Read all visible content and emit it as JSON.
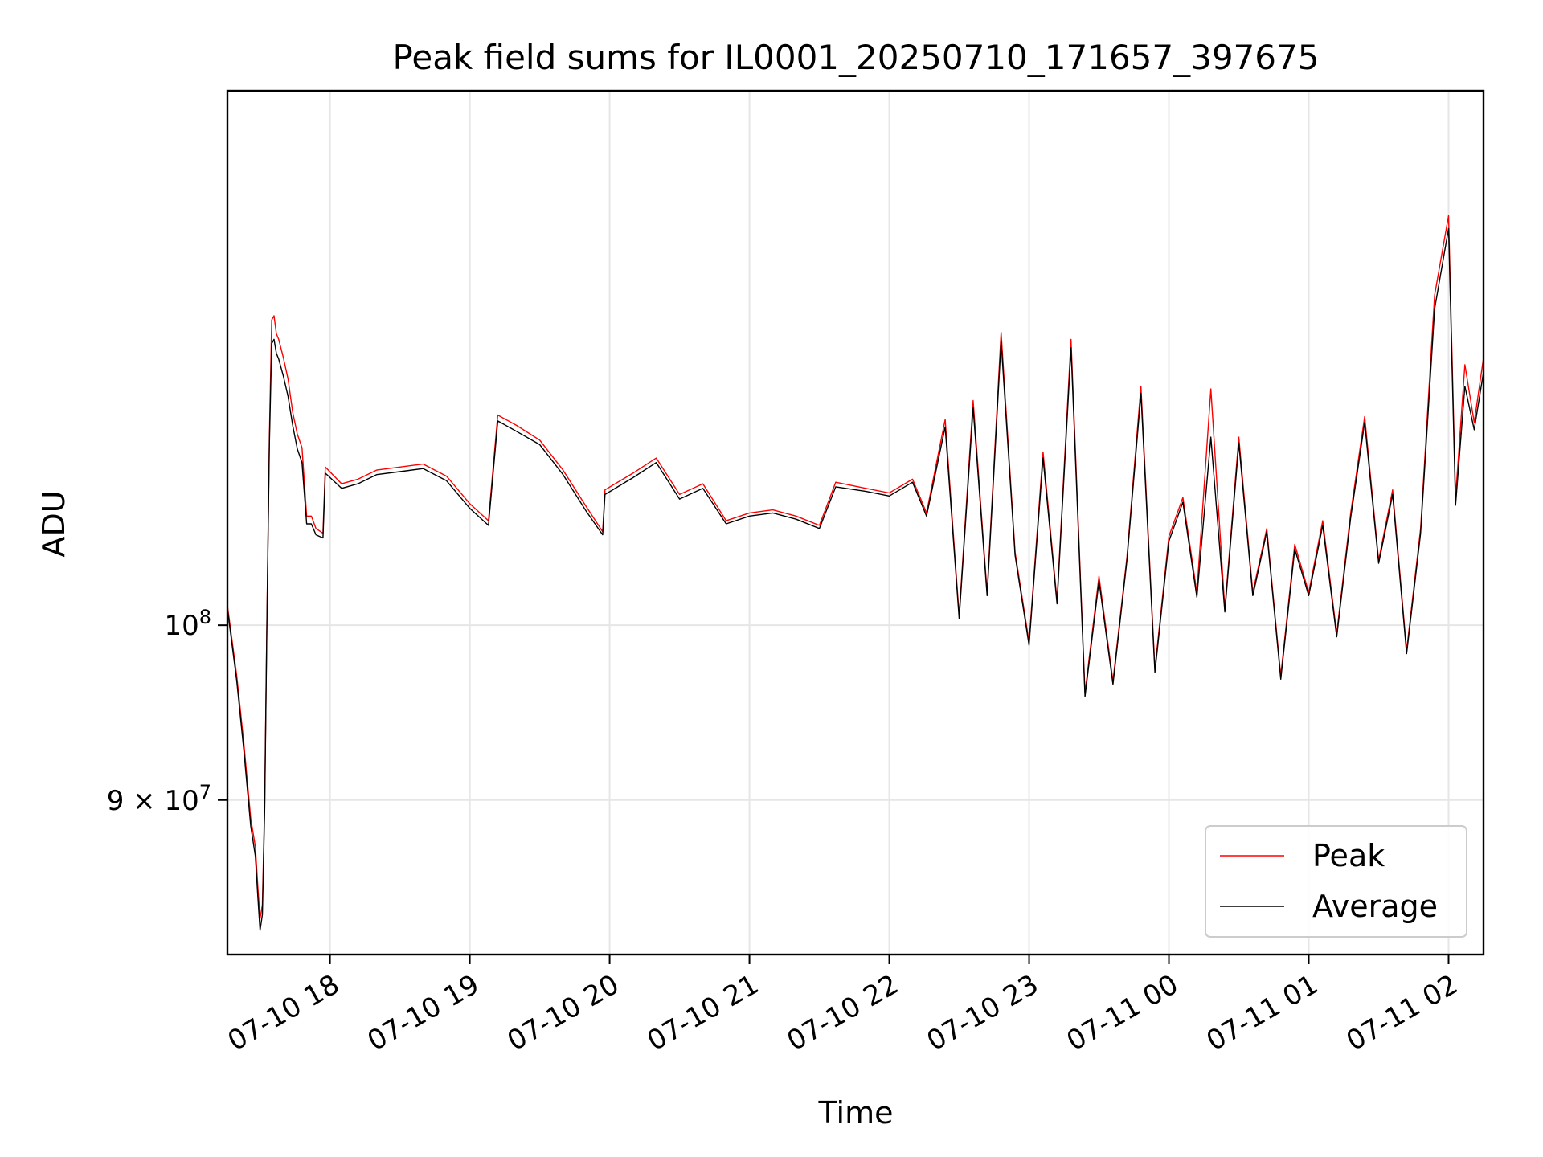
{
  "chart_data": {
    "type": "line",
    "title": "Peak field sums for IL0001_20250710_171657_397675",
    "xlabel": "Time",
    "ylabel": "ADU",
    "yscale": "log",
    "grid": true,
    "legend_position": "lower-right",
    "xlim": [
      "2025-07-10 17:16",
      "2025-07-11 02:15"
    ],
    "ylim": [
      82000000,
      138000000
    ],
    "x_ticks": [
      {
        "t": "2025-07-10 18:00",
        "label": "07-10 18"
      },
      {
        "t": "2025-07-10 19:00",
        "label": "07-10 19"
      },
      {
        "t": "2025-07-10 20:00",
        "label": "07-10 20"
      },
      {
        "t": "2025-07-10 21:00",
        "label": "07-10 21"
      },
      {
        "t": "2025-07-10 22:00",
        "label": "07-10 22"
      },
      {
        "t": "2025-07-10 23:00",
        "label": "07-10 23"
      },
      {
        "t": "2025-07-11 00:00",
        "label": "07-11 00"
      },
      {
        "t": "2025-07-11 01:00",
        "label": "07-11 01"
      },
      {
        "t": "2025-07-11 02:00",
        "label": "07-11 02"
      }
    ],
    "y_ticks": [
      {
        "value": 100000000,
        "base": "10",
        "exp": "8",
        "coef": ""
      },
      {
        "value": 90000000,
        "base": "10",
        "exp": "7",
        "coef": "9 × "
      }
    ],
    "series": [
      {
        "name": "Peak",
        "color": "#ff0000",
        "points": [
          [
            "2025-07-10 17:16",
            101200000
          ],
          [
            "2025-07-10 17:20",
            97000000
          ],
          [
            "2025-07-10 17:23",
            93200000
          ],
          [
            "2025-07-10 17:26",
            89000000
          ],
          [
            "2025-07-10 17:28",
            87500000
          ],
          [
            "2025-07-10 17:29",
            85500000
          ],
          [
            "2025-07-10 17:30",
            83800000
          ],
          [
            "2025-07-10 17:31",
            84500000
          ],
          [
            "2025-07-10 17:32",
            90000000
          ],
          [
            "2025-07-10 17:33",
            101000000
          ],
          [
            "2025-07-10 17:34",
            112000000
          ],
          [
            "2025-07-10 17:35",
            120200000
          ],
          [
            "2025-07-10 17:36",
            120500000
          ],
          [
            "2025-07-10 17:37",
            119200000
          ],
          [
            "2025-07-10 17:38",
            118800000
          ],
          [
            "2025-07-10 17:40",
            117500000
          ],
          [
            "2025-07-10 17:42",
            116000000
          ],
          [
            "2025-07-10 17:44",
            113700000
          ],
          [
            "2025-07-10 17:46",
            112200000
          ],
          [
            "2025-07-10 17:48",
            111300000
          ],
          [
            "2025-07-10 17:50",
            106800000
          ],
          [
            "2025-07-10 17:52",
            106800000
          ],
          [
            "2025-07-10 17:54",
            106000000
          ],
          [
            "2025-07-10 17:57",
            105700000
          ],
          [
            "2025-07-10 17:58",
            110000000
          ],
          [
            "2025-07-10 18:05",
            108900000
          ],
          [
            "2025-07-10 18:12",
            109200000
          ],
          [
            "2025-07-10 18:20",
            109800000
          ],
          [
            "2025-07-10 18:30",
            110000000
          ],
          [
            "2025-07-10 18:40",
            110200000
          ],
          [
            "2025-07-10 18:50",
            109400000
          ],
          [
            "2025-07-10 19:00",
            107600000
          ],
          [
            "2025-07-10 19:08",
            106500000
          ],
          [
            "2025-07-10 19:12",
            113500000
          ],
          [
            "2025-07-10 19:20",
            112800000
          ],
          [
            "2025-07-10 19:30",
            111800000
          ],
          [
            "2025-07-10 19:40",
            109800000
          ],
          [
            "2025-07-10 19:50",
            107400000
          ],
          [
            "2025-07-10 19:57",
            105800000
          ],
          [
            "2025-07-10 19:58",
            108500000
          ],
          [
            "2025-07-10 20:10",
            109600000
          ],
          [
            "2025-07-10 20:20",
            110600000
          ],
          [
            "2025-07-10 20:30",
            108200000
          ],
          [
            "2025-07-10 20:40",
            108900000
          ],
          [
            "2025-07-10 20:50",
            106500000
          ],
          [
            "2025-07-10 21:00",
            107000000
          ],
          [
            "2025-07-10 21:10",
            107200000
          ],
          [
            "2025-07-10 21:20",
            106800000
          ],
          [
            "2025-07-10 21:30",
            106200000
          ],
          [
            "2025-07-10 21:37",
            109000000
          ],
          [
            "2025-07-10 21:50",
            108600000
          ],
          [
            "2025-07-10 22:00",
            108300000
          ],
          [
            "2025-07-10 22:10",
            109200000
          ],
          [
            "2025-07-10 22:16",
            107000000
          ],
          [
            "2025-07-10 22:24",
            113200000
          ],
          [
            "2025-07-10 22:30",
            100600000
          ],
          [
            "2025-07-10 22:36",
            114500000
          ],
          [
            "2025-07-10 22:42",
            102000000
          ],
          [
            "2025-07-10 22:48",
            119300000
          ],
          [
            "2025-07-10 22:54",
            104500000
          ],
          [
            "2025-07-10 23:00",
            99000000
          ],
          [
            "2025-07-10 23:06",
            111000000
          ],
          [
            "2025-07-10 23:12",
            101500000
          ],
          [
            "2025-07-10 23:18",
            118800000
          ],
          [
            "2025-07-10 23:24",
            96000000
          ],
          [
            "2025-07-10 23:30",
            103000000
          ],
          [
            "2025-07-10 23:36",
            96700000
          ],
          [
            "2025-07-10 23:42",
            104200000
          ],
          [
            "2025-07-10 23:48",
            115500000
          ],
          [
            "2025-07-10 23:54",
            97400000
          ],
          [
            "2025-07-11 00:00",
            105500000
          ],
          [
            "2025-07-11 00:06",
            108000000
          ],
          [
            "2025-07-11 00:12",
            102000000
          ],
          [
            "2025-07-11 00:18",
            115300000
          ],
          [
            "2025-07-11 00:24",
            101000000
          ],
          [
            "2025-07-11 00:30",
            112000000
          ],
          [
            "2025-07-11 00:36",
            102000000
          ],
          [
            "2025-07-11 00:42",
            106000000
          ],
          [
            "2025-07-11 00:48",
            97000000
          ],
          [
            "2025-07-11 00:54",
            105000000
          ],
          [
            "2025-07-11 01:00",
            102000000
          ],
          [
            "2025-07-11 01:06",
            106500000
          ],
          [
            "2025-07-11 01:12",
            99500000
          ],
          [
            "2025-07-11 01:18",
            107000000
          ],
          [
            "2025-07-11 01:24",
            113400000
          ],
          [
            "2025-07-11 01:30",
            104000000
          ],
          [
            "2025-07-11 01:36",
            108500000
          ],
          [
            "2025-07-11 01:42",
            98500000
          ],
          [
            "2025-07-11 01:48",
            106000000
          ],
          [
            "2025-07-11 01:54",
            122000000
          ],
          [
            "2025-07-11 02:00",
            128000000
          ],
          [
            "2025-07-11 02:03",
            108000000
          ],
          [
            "2025-07-11 02:07",
            117000000
          ],
          [
            "2025-07-11 02:11",
            113000000
          ],
          [
            "2025-07-11 02:15",
            117500000
          ]
        ]
      },
      {
        "name": "Average",
        "color": "#000000",
        "points": [
          [
            "2025-07-10 17:16",
            101000000
          ],
          [
            "2025-07-10 17:20",
            96700000
          ],
          [
            "2025-07-10 17:23",
            92800000
          ],
          [
            "2025-07-10 17:26",
            88600000
          ],
          [
            "2025-07-10 17:28",
            87000000
          ],
          [
            "2025-07-10 17:29",
            85000000
          ],
          [
            "2025-07-10 17:30",
            83200000
          ],
          [
            "2025-07-10 17:31",
            84000000
          ],
          [
            "2025-07-10 17:32",
            89600000
          ],
          [
            "2025-07-10 17:33",
            100800000
          ],
          [
            "2025-07-10 17:34",
            111500000
          ],
          [
            "2025-07-10 17:35",
            118500000
          ],
          [
            "2025-07-10 17:36",
            118800000
          ],
          [
            "2025-07-10 17:37",
            117800000
          ],
          [
            "2025-07-10 17:38",
            117400000
          ],
          [
            "2025-07-10 17:40",
            116200000
          ],
          [
            "2025-07-10 17:42",
            114800000
          ],
          [
            "2025-07-10 17:44",
            112800000
          ],
          [
            "2025-07-10 17:46",
            111200000
          ],
          [
            "2025-07-10 17:48",
            110300000
          ],
          [
            "2025-07-10 17:50",
            106300000
          ],
          [
            "2025-07-10 17:52",
            106300000
          ],
          [
            "2025-07-10 17:54",
            105600000
          ],
          [
            "2025-07-10 17:57",
            105400000
          ],
          [
            "2025-07-10 17:58",
            109600000
          ],
          [
            "2025-07-10 18:05",
            108600000
          ],
          [
            "2025-07-10 18:12",
            108900000
          ],
          [
            "2025-07-10 18:20",
            109500000
          ],
          [
            "2025-07-10 18:30",
            109700000
          ],
          [
            "2025-07-10 18:40",
            109900000
          ],
          [
            "2025-07-10 18:50",
            109100000
          ],
          [
            "2025-07-10 19:00",
            107300000
          ],
          [
            "2025-07-10 19:08",
            106200000
          ],
          [
            "2025-07-10 19:12",
            113100000
          ],
          [
            "2025-07-10 19:20",
            112400000
          ],
          [
            "2025-07-10 19:30",
            111500000
          ],
          [
            "2025-07-10 19:40",
            109500000
          ],
          [
            "2025-07-10 19:50",
            107100000
          ],
          [
            "2025-07-10 19:57",
            105600000
          ],
          [
            "2025-07-10 19:58",
            108200000
          ],
          [
            "2025-07-10 20:10",
            109300000
          ],
          [
            "2025-07-10 20:20",
            110300000
          ],
          [
            "2025-07-10 20:30",
            107900000
          ],
          [
            "2025-07-10 20:40",
            108600000
          ],
          [
            "2025-07-10 20:50",
            106300000
          ],
          [
            "2025-07-10 21:00",
            106800000
          ],
          [
            "2025-07-10 21:10",
            107000000
          ],
          [
            "2025-07-10 21:20",
            106600000
          ],
          [
            "2025-07-10 21:30",
            106000000
          ],
          [
            "2025-07-10 21:37",
            108700000
          ],
          [
            "2025-07-10 21:50",
            108400000
          ],
          [
            "2025-07-10 22:00",
            108100000
          ],
          [
            "2025-07-10 22:10",
            109000000
          ],
          [
            "2025-07-10 22:16",
            106800000
          ],
          [
            "2025-07-10 22:24",
            112700000
          ],
          [
            "2025-07-10 22:30",
            100400000
          ],
          [
            "2025-07-10 22:36",
            114000000
          ],
          [
            "2025-07-10 22:42",
            101800000
          ],
          [
            "2025-07-10 22:48",
            118700000
          ],
          [
            "2025-07-10 22:54",
            104300000
          ],
          [
            "2025-07-10 23:00",
            98800000
          ],
          [
            "2025-07-10 23:06",
            110600000
          ],
          [
            "2025-07-10 23:12",
            101300000
          ],
          [
            "2025-07-10 23:18",
            118200000
          ],
          [
            "2025-07-10 23:24",
            95800000
          ],
          [
            "2025-07-10 23:30",
            102700000
          ],
          [
            "2025-07-10 23:36",
            96500000
          ],
          [
            "2025-07-10 23:42",
            104000000
          ],
          [
            "2025-07-10 23:48",
            115000000
          ],
          [
            "2025-07-10 23:54",
            97200000
          ],
          [
            "2025-07-11 00:00",
            105200000
          ],
          [
            "2025-07-11 00:06",
            107700000
          ],
          [
            "2025-07-11 00:12",
            101700000
          ],
          [
            "2025-07-11 00:18",
            112000000
          ],
          [
            "2025-07-11 00:24",
            100800000
          ],
          [
            "2025-07-11 00:30",
            111600000
          ],
          [
            "2025-07-11 00:36",
            101800000
          ],
          [
            "2025-07-11 00:42",
            105800000
          ],
          [
            "2025-07-11 00:48",
            96800000
          ],
          [
            "2025-07-11 00:54",
            104700000
          ],
          [
            "2025-07-11 01:00",
            101800000
          ],
          [
            "2025-07-11 01:06",
            106200000
          ],
          [
            "2025-07-11 01:12",
            99300000
          ],
          [
            "2025-07-11 01:18",
            106700000
          ],
          [
            "2025-07-11 01:24",
            113000000
          ],
          [
            "2025-07-11 01:30",
            103800000
          ],
          [
            "2025-07-11 01:36",
            108200000
          ],
          [
            "2025-07-11 01:42",
            98300000
          ],
          [
            "2025-07-11 01:48",
            105700000
          ],
          [
            "2025-07-11 01:54",
            121000000
          ],
          [
            "2025-07-11 02:00",
            127000000
          ],
          [
            "2025-07-11 02:03",
            107500000
          ],
          [
            "2025-07-11 02:07",
            115500000
          ],
          [
            "2025-07-11 02:11",
            112500000
          ],
          [
            "2025-07-11 02:15",
            116500000
          ]
        ]
      }
    ]
  }
}
